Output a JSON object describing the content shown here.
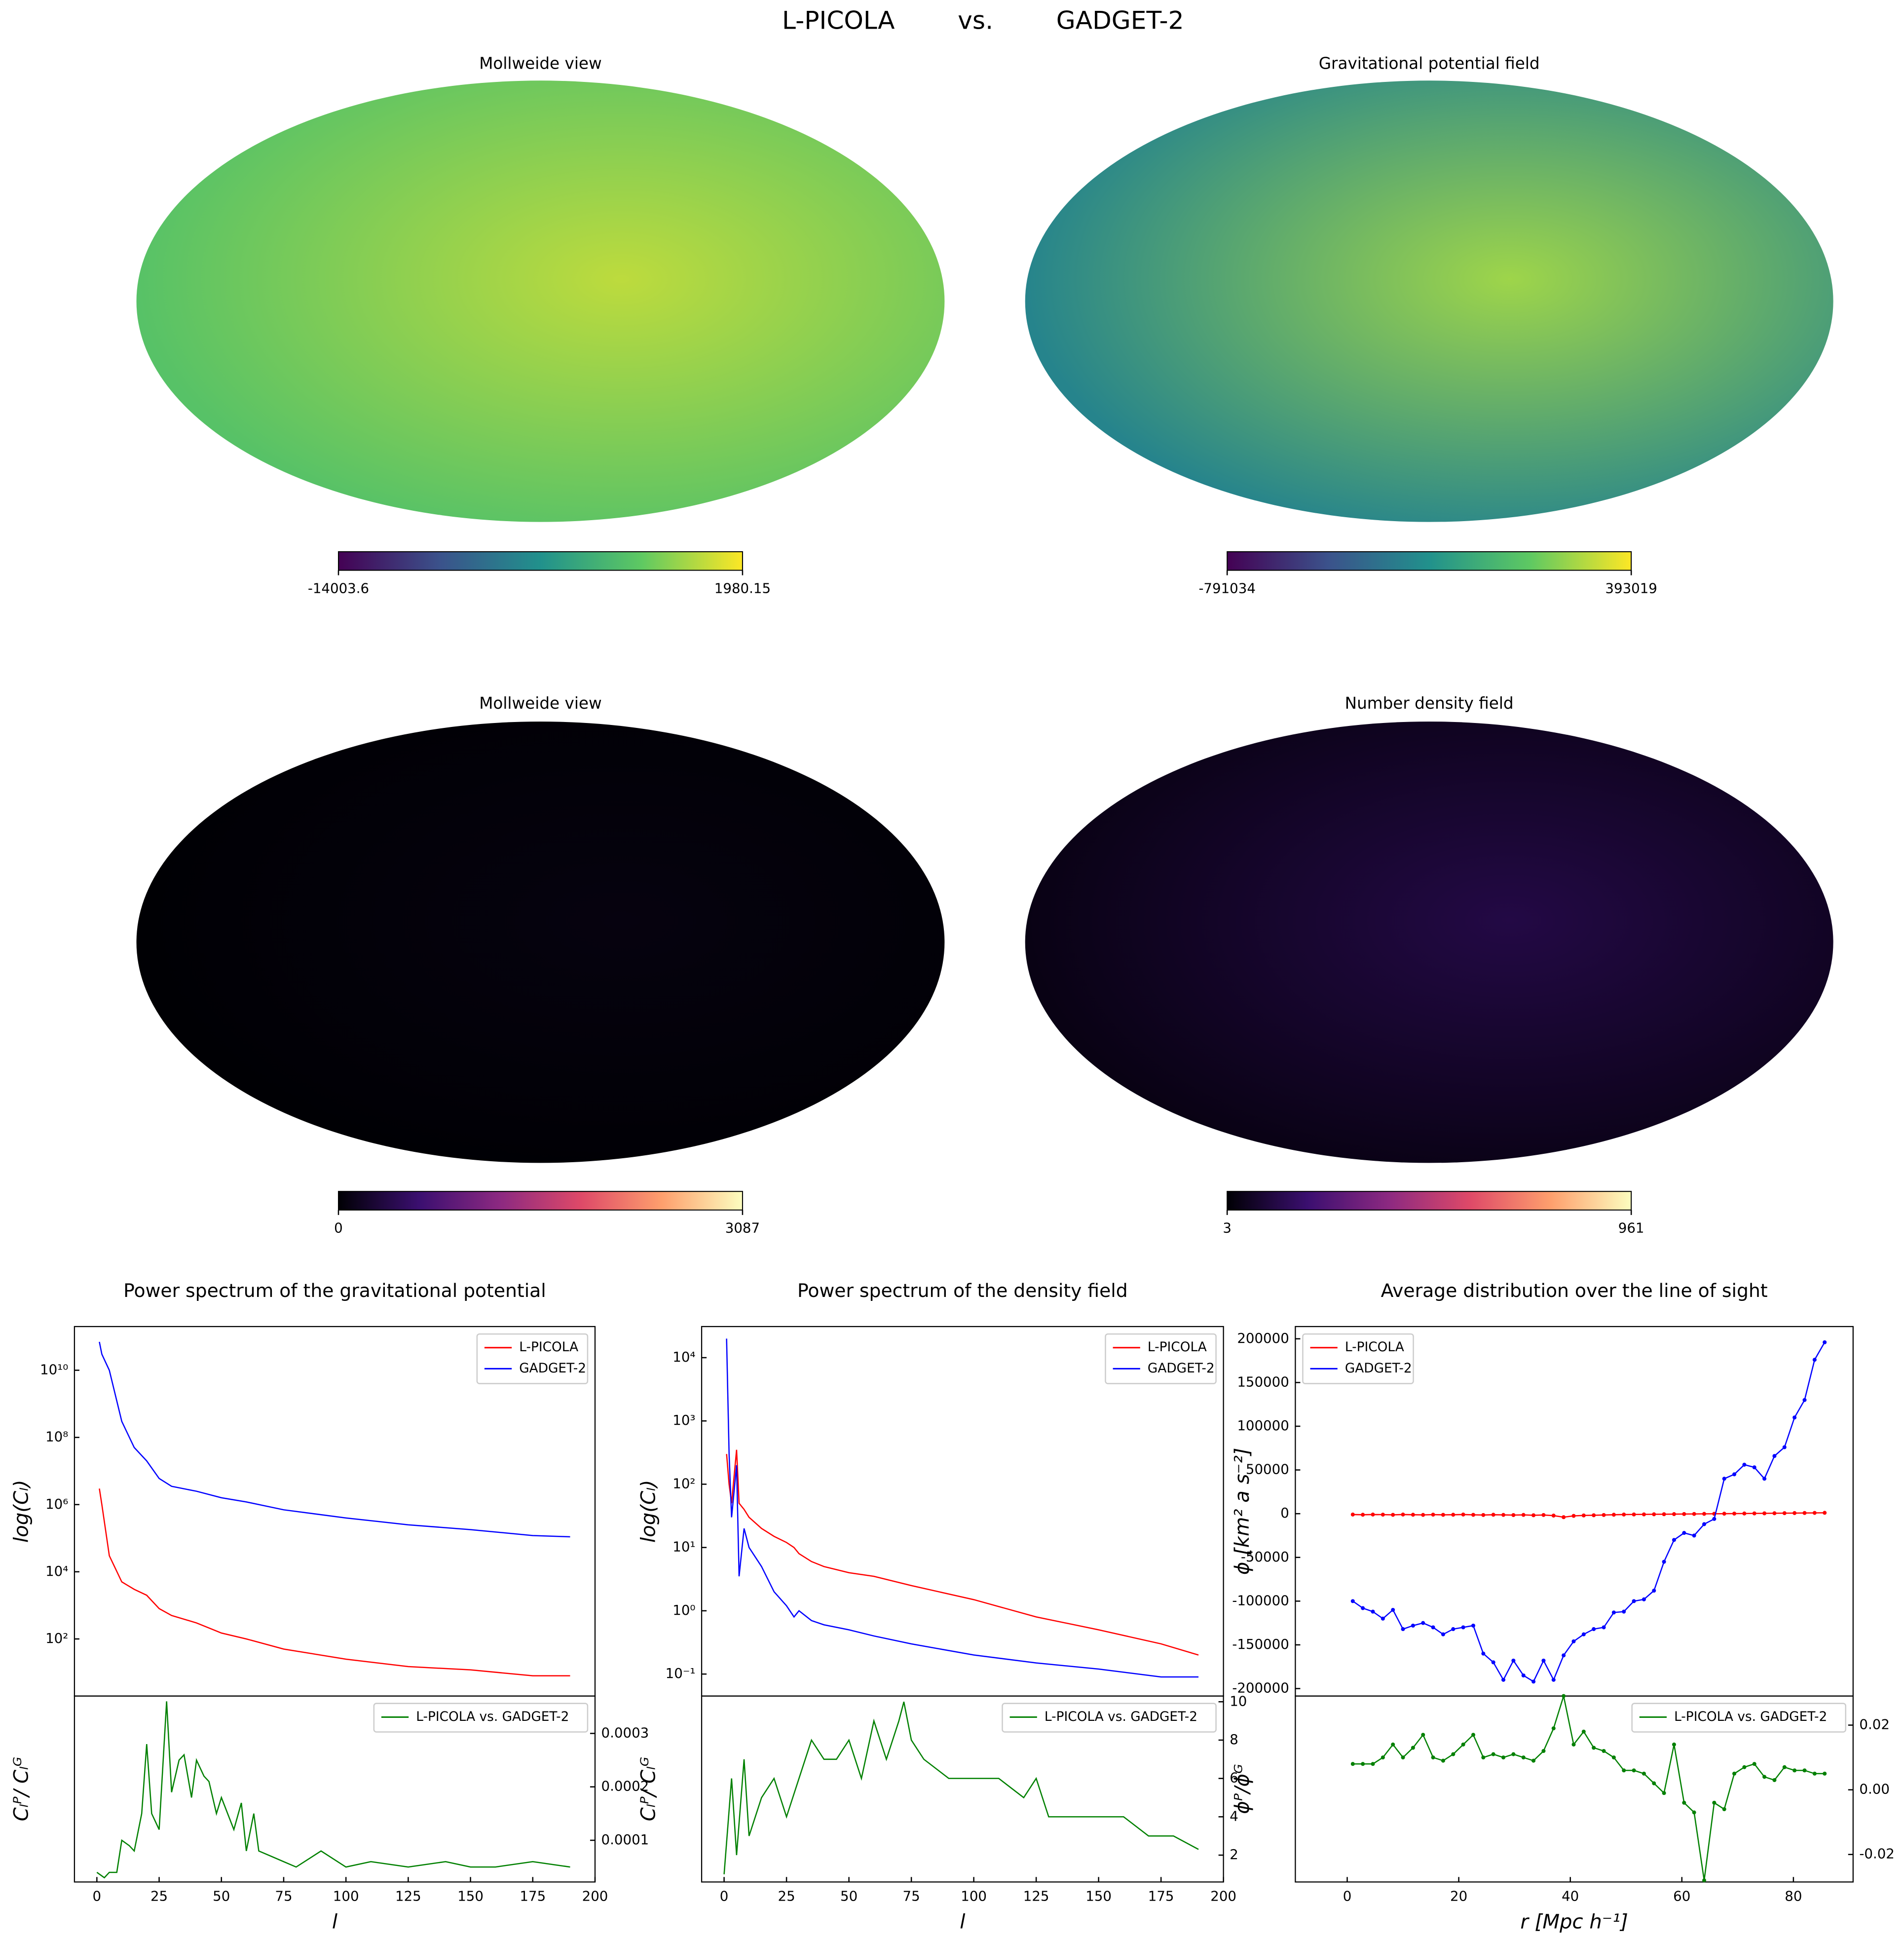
{
  "suptitle": "L-PICOLA        vs.        GADGET-2",
  "chart_data": [
    {
      "type": "map",
      "title": "Mollweide view",
      "colormap": [
        "#440154",
        "#3b528b",
        "#21918c",
        "#5ec962",
        "#fde725"
      ],
      "clim": [
        -14003.6,
        1980.15
      ],
      "cticks": [
        -14003.6,
        1980.15
      ]
    },
    {
      "type": "map",
      "title": "Gravitational potential field",
      "colormap": [
        "#440154",
        "#3b528b",
        "#21918c",
        "#5ec962",
        "#fde725"
      ],
      "clim": [
        -791034,
        393019
      ],
      "cticks": [
        -791034,
        393019
      ]
    },
    {
      "type": "map",
      "title": "Mollweide view",
      "colormap": [
        "#000004",
        "#3b0f70",
        "#8c2981",
        "#de4968",
        "#fe9f6d",
        "#fcfdbf"
      ],
      "clim": [
        0,
        3087
      ],
      "cticks": [
        0,
        3087
      ]
    },
    {
      "type": "map",
      "title": "Number density field",
      "colormap": [
        "#000004",
        "#3b0f70",
        "#8c2981",
        "#de4968",
        "#fe9f6d",
        "#fcfdbf"
      ],
      "clim": [
        3,
        961
      ],
      "cticks": [
        3,
        961
      ]
    },
    {
      "type": "line",
      "title": "Power spectrum of the gravitational potential",
      "ylabel": "log(Cₗ)",
      "yscale": "log",
      "legend": "upper right",
      "xlim": [
        -9,
        200
      ],
      "ylim": [
        2,
        200000000000.0
      ],
      "yticks": [
        {
          "value": 100,
          "label": "10²"
        },
        {
          "value": 10000,
          "label": "10⁴"
        },
        {
          "value": 1000000,
          "label": "10⁶"
        },
        {
          "value": 100000000,
          "label": "10⁸"
        },
        {
          "value": 10000000000,
          "label": "10¹⁰"
        }
      ],
      "x": [
        1,
        2,
        5,
        10,
        15,
        20,
        25,
        30,
        40,
        50,
        60,
        75,
        100,
        125,
        150,
        175,
        190
      ],
      "series": [
        {
          "name": "L-PICOLA",
          "color": "#ff0000",
          "values": [
            3000000,
            1000000,
            30000,
            5000,
            3000,
            2000,
            800,
            500,
            300,
            150,
            100,
            50,
            25,
            15,
            12,
            8,
            8
          ]
        },
        {
          "name": "GADGET-2",
          "color": "#0000ff",
          "values": [
            70000000000.0,
            30000000000.0,
            10000000000.0,
            300000000,
            50000000,
            20000000,
            6000000,
            3500000,
            2500000,
            1600000,
            1200000,
            700000,
            400000,
            250000,
            180000,
            120000,
            110000
          ]
        }
      ]
    },
    {
      "type": "line",
      "xlabel": "l",
      "ylabel": "Cₗᴾ/ Cₗᴳ",
      "legend": "upper right",
      "ytick_side": "right",
      "xlim": [
        -9,
        200
      ],
      "ylim": [
        2.2e-05,
        0.00037
      ],
      "xticks": [
        0,
        25,
        50,
        75,
        100,
        125,
        150,
        175,
        200
      ],
      "yticks": [
        0.0001,
        0.0002,
        0.0003
      ],
      "x": [
        0,
        3,
        5,
        8,
        10,
        13,
        15,
        18,
        20,
        22,
        25,
        28,
        30,
        33,
        35,
        38,
        40,
        43,
        45,
        48,
        50,
        55,
        58,
        60,
        63,
        65,
        70,
        75,
        80,
        90,
        100,
        110,
        125,
        140,
        150,
        160,
        175,
        190
      ],
      "series": [
        {
          "name": "L-PICOLA vs. GADGET-2",
          "color": "#008000",
          "values": [
            4e-05,
            3e-05,
            4e-05,
            4e-05,
            0.0001,
            9e-05,
            8e-05,
            0.00015,
            0.00028,
            0.00015,
            0.00012,
            0.00036,
            0.00019,
            0.00025,
            0.00026,
            0.00018,
            0.00025,
            0.00022,
            0.00021,
            0.00015,
            0.00018,
            0.00012,
            0.00017,
            8e-05,
            0.00015,
            8e-05,
            7e-05,
            6e-05,
            5e-05,
            8e-05,
            5e-05,
            6e-05,
            5e-05,
            6e-05,
            5e-05,
            5e-05,
            6e-05,
            5e-05
          ]
        }
      ]
    },
    {
      "type": "line",
      "title": "Power spectrum of the density field",
      "ylabel": "log(Cₗ)",
      "yscale": "log",
      "legend": "upper right",
      "xlim": [
        -9,
        200
      ],
      "ylim": [
        0.045,
        31000
      ],
      "yticks": [
        {
          "value": 0.1,
          "label": "10⁻¹"
        },
        {
          "value": 1,
          "label": "10⁰"
        },
        {
          "value": 10,
          "label": "10¹"
        },
        {
          "value": 100,
          "label": "10²"
        },
        {
          "value": 1000,
          "label": "10³"
        },
        {
          "value": 10000,
          "label": "10⁴"
        }
      ],
      "x": [
        1,
        2,
        3,
        5,
        6,
        8,
        10,
        15,
        20,
        25,
        28,
        30,
        35,
        40,
        50,
        60,
        75,
        100,
        125,
        150,
        175,
        190
      ],
      "series": [
        {
          "name": "L-PICOLA",
          "color": "#ff0000",
          "values": [
            300,
            100,
            50,
            350,
            50,
            40,
            30,
            20,
            15,
            12,
            10,
            8,
            6,
            5,
            4,
            3.5,
            2.5,
            1.5,
            0.8,
            0.5,
            0.3,
            0.2
          ]
        },
        {
          "name": "GADGET-2",
          "color": "#0000ff",
          "values": [
            20000,
            300,
            30,
            200,
            3.5,
            20,
            10,
            5,
            2,
            1.2,
            0.8,
            1,
            0.7,
            0.6,
            0.5,
            0.4,
            0.3,
            0.2,
            0.15,
            0.12,
            0.09,
            0.09
          ]
        }
      ]
    },
    {
      "type": "line",
      "xlabel": "l",
      "ylabel": "Cₗᴾ/ Cₗᴳ",
      "legend": "upper right",
      "ytick_side": "right",
      "xlim": [
        -9,
        200
      ],
      "ylim": [
        0.6,
        10.3
      ],
      "xticks": [
        0,
        25,
        50,
        75,
        100,
        125,
        150,
        175,
        200
      ],
      "yticks": [
        2,
        4,
        6,
        8,
        10
      ],
      "x": [
        0,
        3,
        5,
        8,
        10,
        15,
        20,
        25,
        30,
        35,
        40,
        45,
        50,
        55,
        60,
        65,
        70,
        72,
        75,
        80,
        90,
        100,
        110,
        120,
        125,
        130,
        140,
        150,
        160,
        170,
        175,
        180,
        190
      ],
      "series": [
        {
          "name": "L-PICOLA vs. GADGET-2",
          "color": "#008000",
          "values": [
            1,
            6,
            2,
            7,
            3,
            5,
            6,
            4,
            6,
            8,
            7,
            7,
            8,
            6,
            9,
            7,
            9,
            10,
            8,
            7,
            6,
            6,
            6,
            5,
            6,
            4,
            4,
            4,
            4,
            3,
            3,
            3,
            2.3
          ]
        }
      ]
    },
    {
      "type": "line",
      "title": "Average distribution over the line of sight",
      "ylabel": "ϕ [km² a s⁻²]",
      "legend": "upper left",
      "markers": true,
      "xlim": [
        -9.3,
        90.7
      ],
      "ylim": [
        -208500,
        214000
      ],
      "yticks": [
        -200000,
        -150000,
        -100000,
        -50000,
        0,
        50000,
        100000,
        150000,
        200000
      ],
      "x": [
        1,
        2.8,
        4.6,
        6.4,
        8.2,
        10,
        11.8,
        13.6,
        15.4,
        17.2,
        19,
        20.8,
        22.6,
        24.4,
        26.2,
        28,
        29.8,
        31.6,
        33.4,
        35.2,
        37,
        38.8,
        40.6,
        42.4,
        44.2,
        46,
        47.8,
        49.6,
        51.4,
        53.2,
        55,
        56.8,
        58.6,
        60.4,
        62.2,
        64,
        65.8,
        67.6,
        69.4,
        71.2,
        73,
        74.8,
        76.6,
        78.4,
        80.2,
        82,
        83.8,
        85.6
      ],
      "series": [
        {
          "name": "L-PICOLA",
          "color": "#ff0000",
          "values": [
            -1000,
            -1200,
            -1000,
            -1100,
            -1300,
            -1000,
            -1200,
            -1400,
            -1100,
            -1300,
            -1200,
            -1000,
            -1300,
            -1500,
            -1200,
            -1400,
            -1600,
            -1400,
            -1800,
            -1500,
            -2200,
            -4000,
            -2500,
            -2000,
            -1800,
            -1500,
            -1200,
            -1000,
            -900,
            -800,
            -700,
            -600,
            -500,
            -400,
            -300,
            -200,
            -100,
            0,
            100,
            200,
            300,
            400,
            500,
            600,
            700,
            800,
            900,
            1000
          ]
        },
        {
          "name": "GADGET-2",
          "color": "#0000ff",
          "values": [
            -100000,
            -108000,
            -112000,
            -120000,
            -110000,
            -132000,
            -128000,
            -125000,
            -130000,
            -138000,
            -132000,
            -130000,
            -128000,
            -160000,
            -170000,
            -190000,
            -168000,
            -185000,
            -192000,
            -168000,
            -190000,
            -162000,
            -146000,
            -138000,
            -132000,
            -130000,
            -113000,
            -112000,
            -100000,
            -98000,
            -88000,
            -55000,
            -30000,
            -22000,
            -25000,
            -12000,
            -6000,
            40000,
            45000,
            56000,
            53000,
            40000,
            66000,
            76000,
            110000,
            130000,
            176000,
            196000
          ]
        }
      ]
    },
    {
      "type": "line",
      "xlabel": "r [Mpc h⁻¹]",
      "ylabel": "ϕᴾ/ϕᴳ",
      "legend": "upper right",
      "ytick_side": "right",
      "markers": true,
      "xlim": [
        -9.3,
        90.7
      ],
      "ylim": [
        -0.0285,
        0.029
      ],
      "xticks": [
        0,
        20,
        40,
        60,
        80
      ],
      "yticks": [
        -0.02,
        {
          "value": 0,
          "label": "0.00"
        },
        0.02
      ],
      "x": [
        1,
        2.8,
        4.6,
        6.4,
        8.2,
        10,
        11.8,
        13.6,
        15.4,
        17.2,
        19,
        20.8,
        22.6,
        24.4,
        26.2,
        28,
        29.8,
        31.6,
        33.4,
        35.2,
        37,
        38.8,
        40.6,
        42.4,
        44.2,
        46,
        47.8,
        49.6,
        51.4,
        53.2,
        55,
        56.8,
        58.6,
        60.4,
        62.2,
        64,
        65.8,
        67.6,
        69.4,
        71.2,
        73,
        74.8,
        76.6,
        78.4,
        80.2,
        82,
        83.8,
        85.6
      ],
      "series": [
        {
          "name": "L-PICOLA vs. GADGET-2",
          "color": "#008000",
          "values": [
            0.008,
            0.008,
            0.008,
            0.01,
            0.014,
            0.01,
            0.013,
            0.017,
            0.01,
            0.009,
            0.011,
            0.014,
            0.017,
            0.01,
            0.011,
            0.01,
            0.011,
            0.01,
            0.009,
            0.012,
            0.019,
            0.029,
            0.014,
            0.018,
            0.013,
            0.012,
            0.01,
            0.006,
            0.006,
            0.005,
            0.002,
            -0.001,
            0.014,
            -0.004,
            -0.007,
            -0.028,
            -0.004,
            -0.006,
            0.005,
            0.007,
            0.008,
            0.004,
            0.003,
            0.007,
            0.006,
            0.006,
            0.005,
            0.005
          ]
        }
      ]
    }
  ]
}
